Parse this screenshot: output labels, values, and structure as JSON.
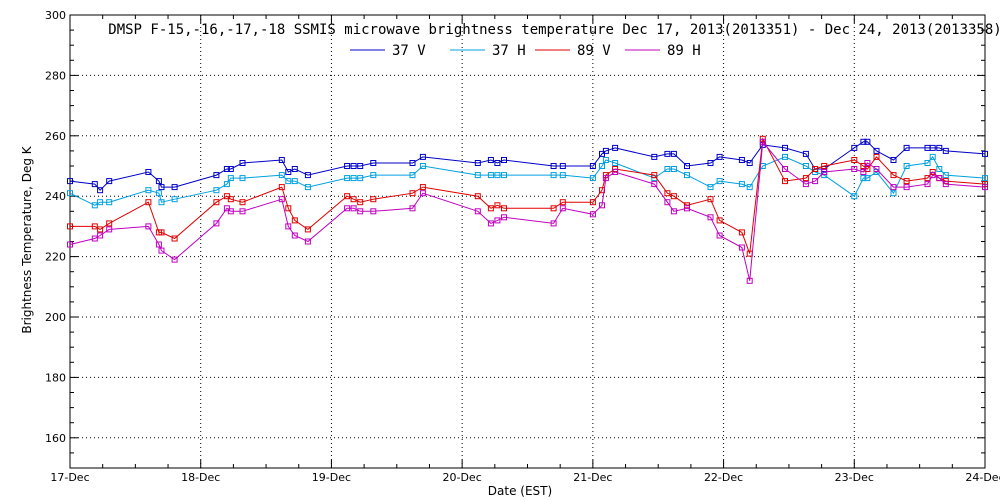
{
  "chart_data": {
    "type": "line",
    "title": "DMSP F-15,-16,-17,-18 SSMIS microwave brightness temperature Dec 17, 2013(2013351) - Dec 24, 2013(2013358)",
    "xlabel": "Date (EST)",
    "ylabel": "Brightness Temperature, Deg K",
    "xlim": [
      0,
      7
    ],
    "ylim": [
      150,
      300
    ],
    "yticks": [
      160,
      180,
      200,
      220,
      240,
      260,
      280,
      300
    ],
    "categories": [
      "17-Dec",
      "18-Dec",
      "19-Dec",
      "20-Dec",
      "21-Dec",
      "22-Dec",
      "23-Dec",
      "24-Dec"
    ],
    "grid": true,
    "legend_position": "top",
    "x_units": "days since 17-Dec 00:00",
    "series": [
      {
        "name": "37 V",
        "color": "#0000c8",
        "x": [
          0.0,
          0.19,
          0.23,
          0.3,
          0.6,
          0.68,
          0.7,
          0.8,
          1.12,
          1.2,
          1.23,
          1.32,
          1.62,
          1.67,
          1.72,
          1.82,
          2.12,
          2.17,
          2.22,
          2.32,
          2.62,
          2.7,
          3.12,
          3.22,
          3.27,
          3.32,
          3.7,
          3.77,
          4.0,
          4.07,
          4.1,
          4.17,
          4.47,
          4.57,
          4.62,
          4.72,
          4.9,
          4.97,
          5.14,
          5.2,
          5.3,
          5.47,
          5.63,
          5.7,
          5.77,
          6.0,
          6.07,
          6.1,
          6.17,
          6.3,
          6.4,
          6.56,
          6.6,
          6.65,
          6.7,
          7.0
        ],
        "values": [
          245,
          244,
          242,
          245,
          248,
          245,
          243,
          243,
          247,
          249,
          249,
          251,
          252,
          248,
          249,
          247,
          250,
          250,
          250,
          251,
          251,
          253,
          251,
          252,
          251,
          252,
          250,
          250,
          250,
          254,
          255,
          256,
          253,
          254,
          254,
          250,
          251,
          253,
          252,
          251,
          257,
          256,
          254,
          249,
          249,
          256,
          258,
          258,
          255,
          252,
          256,
          256,
          256,
          256,
          255,
          254
        ]
      },
      {
        "name": "37 H",
        "color": "#00a0e0",
        "x": [
          0.0,
          0.19,
          0.23,
          0.3,
          0.6,
          0.68,
          0.7,
          0.8,
          1.12,
          1.2,
          1.23,
          1.32,
          1.62,
          1.67,
          1.72,
          1.82,
          2.12,
          2.17,
          2.22,
          2.32,
          2.62,
          2.7,
          3.12,
          3.22,
          3.27,
          3.32,
          3.7,
          3.77,
          4.0,
          4.07,
          4.1,
          4.17,
          4.47,
          4.57,
          4.62,
          4.72,
          4.9,
          4.97,
          5.14,
          5.2,
          5.3,
          5.47,
          5.63,
          5.7,
          5.77,
          6.0,
          6.07,
          6.1,
          6.17,
          6.3,
          6.4,
          6.56,
          6.6,
          6.65,
          6.7,
          7.0
        ],
        "values": [
          241,
          237,
          238,
          238,
          242,
          241,
          238,
          239,
          242,
          244,
          246,
          246,
          247,
          245,
          245,
          243,
          246,
          246,
          246,
          247,
          247,
          250,
          247,
          247,
          247,
          247,
          247,
          247,
          246,
          250,
          252,
          251,
          246,
          249,
          249,
          247,
          243,
          245,
          244,
          243,
          250,
          253,
          250,
          248,
          247,
          240,
          246,
          246,
          248,
          241,
          250,
          251,
          253,
          249,
          247,
          246
        ]
      },
      {
        "name": "89 V",
        "color": "#e00000",
        "x": [
          0.0,
          0.19,
          0.23,
          0.3,
          0.6,
          0.68,
          0.7,
          0.8,
          1.12,
          1.2,
          1.23,
          1.32,
          1.62,
          1.67,
          1.72,
          1.82,
          2.12,
          2.17,
          2.22,
          2.32,
          2.62,
          2.7,
          3.12,
          3.22,
          3.27,
          3.32,
          3.7,
          3.77,
          4.0,
          4.07,
          4.1,
          4.17,
          4.47,
          4.57,
          4.62,
          4.72,
          4.9,
          4.97,
          5.14,
          5.2,
          5.3,
          5.47,
          5.63,
          5.7,
          5.77,
          6.0,
          6.07,
          6.1,
          6.17,
          6.3,
          6.4,
          6.56,
          6.6,
          6.65,
          6.7,
          7.0
        ],
        "values": [
          230,
          230,
          229,
          231,
          238,
          228,
          228,
          226,
          238,
          240,
          239,
          238,
          243,
          236,
          232,
          229,
          240,
          239,
          238,
          239,
          241,
          243,
          240,
          236,
          237,
          236,
          236,
          238,
          238,
          242,
          247,
          249,
          247,
          241,
          240,
          237,
          239,
          232,
          228,
          221,
          259,
          245,
          246,
          249,
          250,
          252,
          250,
          249,
          253,
          247,
          245,
          246,
          248,
          246,
          245,
          244
        ]
      },
      {
        "name": "89 H",
        "color": "#c000c0",
        "x": [
          0.0,
          0.19,
          0.23,
          0.3,
          0.6,
          0.68,
          0.7,
          0.8,
          1.12,
          1.2,
          1.23,
          1.32,
          1.62,
          1.67,
          1.72,
          1.82,
          2.12,
          2.17,
          2.22,
          2.32,
          2.62,
          2.7,
          3.12,
          3.22,
          3.27,
          3.32,
          3.7,
          3.77,
          4.0,
          4.07,
          4.1,
          4.17,
          4.47,
          4.57,
          4.62,
          4.72,
          4.9,
          4.97,
          5.14,
          5.2,
          5.3,
          5.47,
          5.63,
          5.7,
          5.77,
          6.0,
          6.07,
          6.1,
          6.17,
          6.3,
          6.4,
          6.56,
          6.6,
          6.65,
          6.7,
          7.0
        ],
        "values": [
          224,
          226,
          227,
          229,
          230,
          224,
          222,
          219,
          231,
          236,
          235,
          235,
          239,
          230,
          227,
          225,
          236,
          236,
          235,
          235,
          236,
          241,
          235,
          231,
          232,
          233,
          231,
          236,
          234,
          237,
          246,
          248,
          244,
          238,
          235,
          236,
          233,
          227,
          223,
          212,
          258,
          249,
          244,
          245,
          248,
          249,
          248,
          251,
          249,
          243,
          243,
          244,
          247,
          246,
          244,
          243
        ]
      }
    ]
  }
}
